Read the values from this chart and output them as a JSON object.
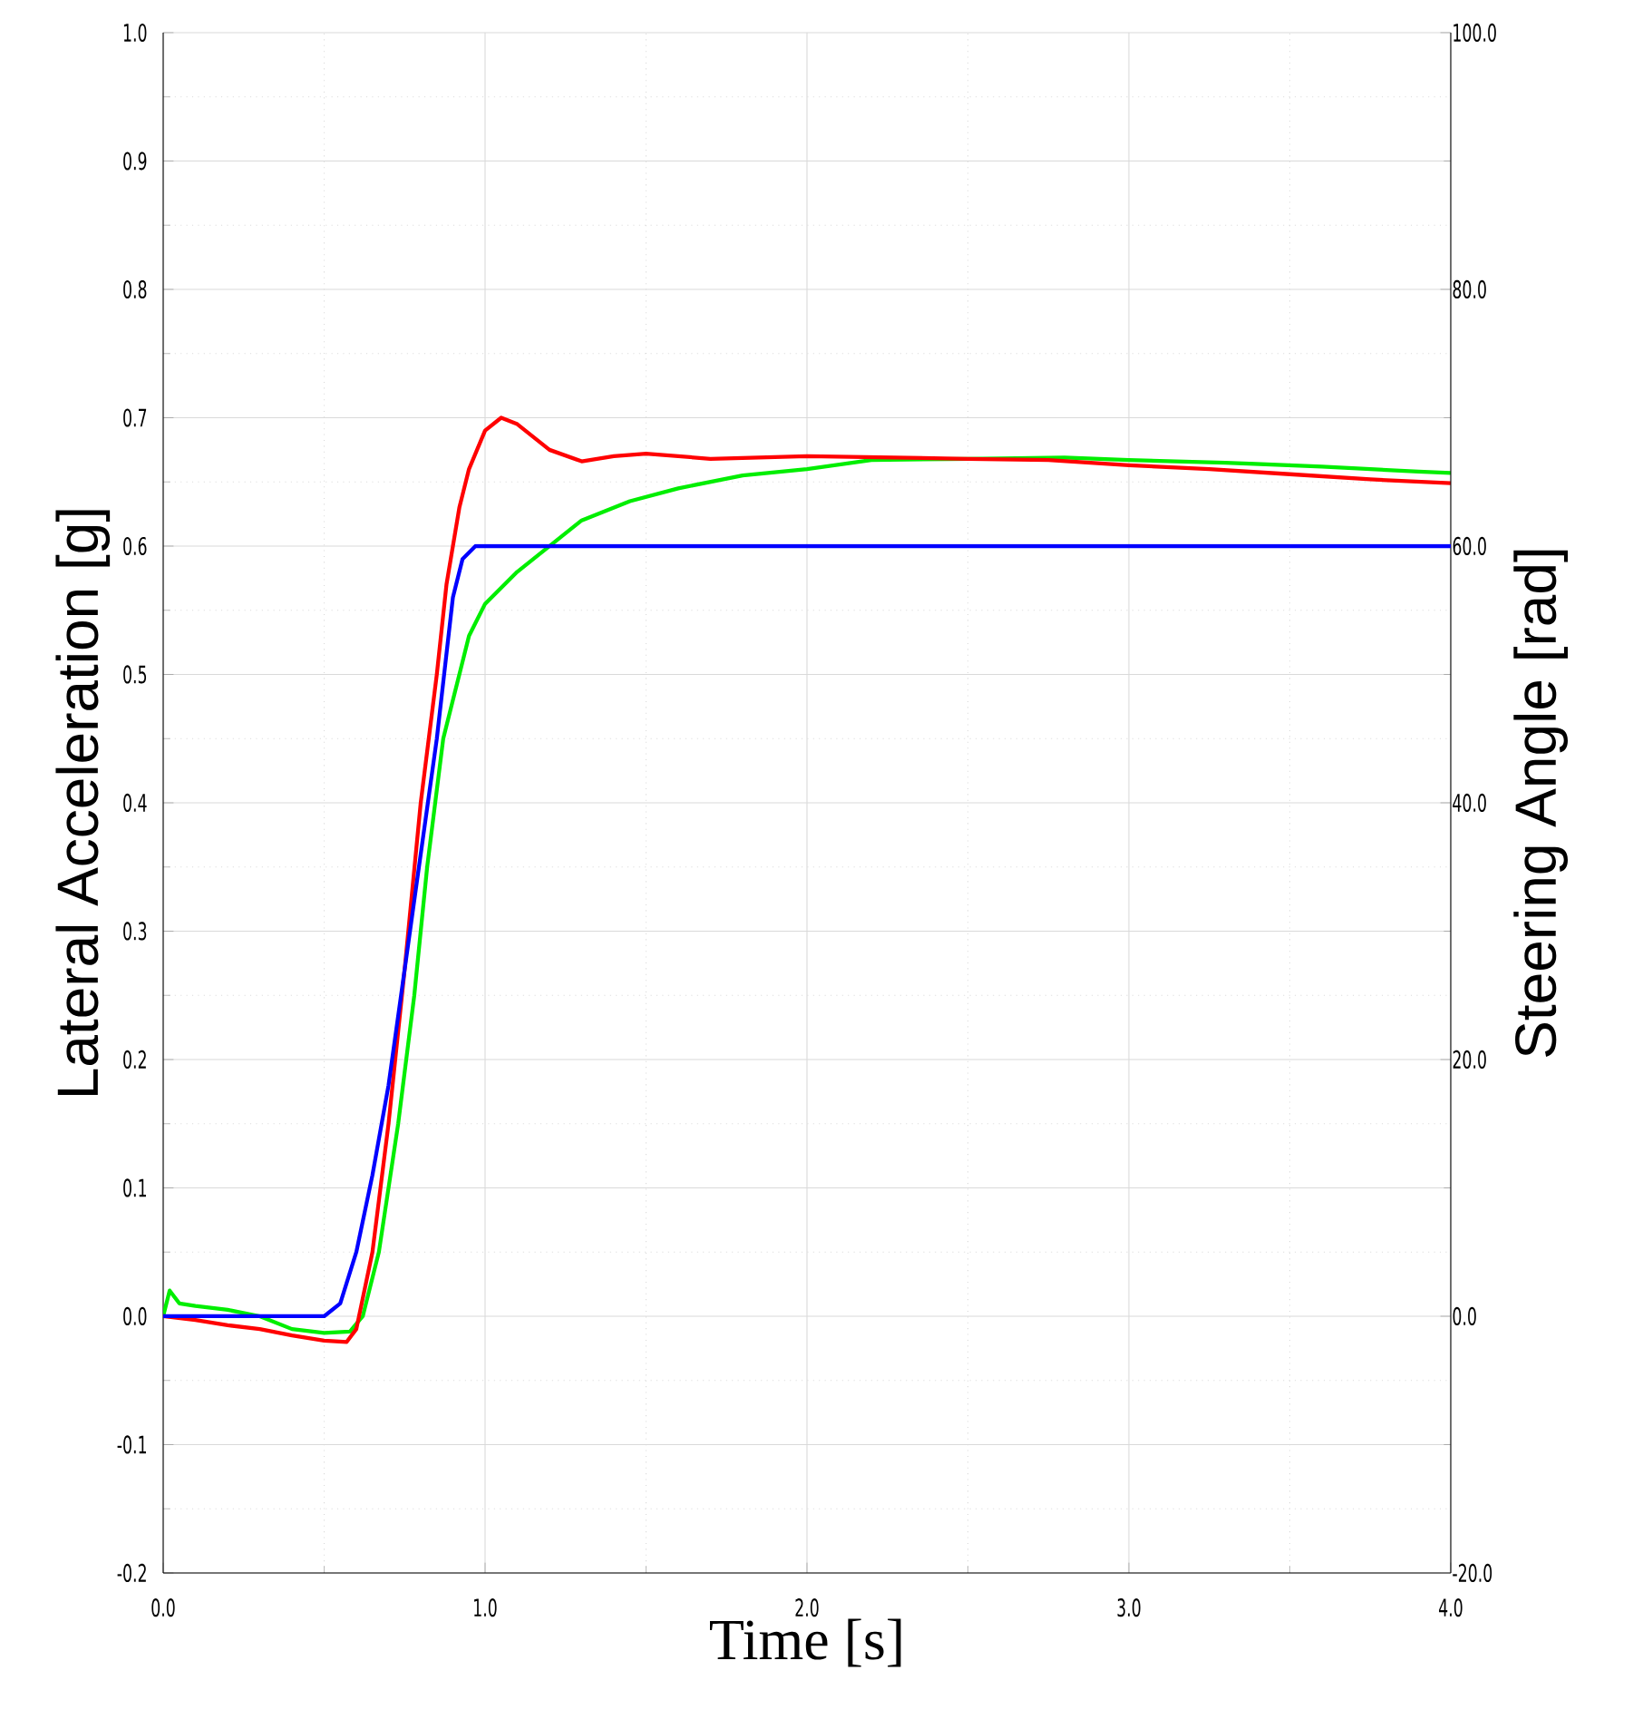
{
  "chart_data": {
    "type": "line",
    "xlabel": "Time [s]",
    "ylabel": "Lateral Acceleration  [g]",
    "y2label": "Steering Angle  [rad]",
    "xlim": [
      0,
      4
    ],
    "ylim": [
      -0.2,
      1.0
    ],
    "y2lim": [
      -20,
      100
    ],
    "xticks": [
      {
        "value": 0,
        "label": "0.0"
      },
      {
        "value": 1,
        "label": "1.0"
      },
      {
        "value": 2,
        "label": "2.0"
      },
      {
        "value": 3,
        "label": "3.0"
      },
      {
        "value": 4,
        "label": "4.0"
      }
    ],
    "yticks": [
      {
        "value": -0.2,
        "label": "-0.2"
      },
      {
        "value": -0.1,
        "label": "-0.1"
      },
      {
        "value": 0,
        "label": "0.0"
      },
      {
        "value": 0.1,
        "label": "0.1"
      },
      {
        "value": 0.2,
        "label": "0.2"
      },
      {
        "value": 0.3,
        "label": "0.3"
      },
      {
        "value": 0.4,
        "label": "0.4"
      },
      {
        "value": 0.5,
        "label": "0.5"
      },
      {
        "value": 0.6,
        "label": "0.6"
      },
      {
        "value": 0.7,
        "label": "0.7"
      },
      {
        "value": 0.8,
        "label": "0.8"
      },
      {
        "value": 0.9,
        "label": "0.9"
      },
      {
        "value": 1.0,
        "label": "1.0"
      }
    ],
    "y2ticks": [
      {
        "value": -20,
        "label": "-20.0"
      },
      {
        "value": 0,
        "label": "0.0"
      },
      {
        "value": 20,
        "label": "20.0"
      },
      {
        "value": 40,
        "label": "40.0"
      },
      {
        "value": 60,
        "label": "60.0"
      },
      {
        "value": 80,
        "label": "80.0"
      },
      {
        "value": 100,
        "label": "100.0"
      }
    ],
    "grid": true,
    "marker": "none",
    "line_style": "solid",
    "series": [
      {
        "color": "#0000ff",
        "axis": "y2",
        "x": [
          0,
          0.5,
          0.55,
          0.6,
          0.65,
          0.7,
          0.75,
          0.8,
          0.85,
          0.9,
          0.93,
          0.97,
          4.0
        ],
        "values": [
          0,
          0,
          1,
          5,
          11,
          18,
          27,
          36,
          45,
          56,
          59,
          60,
          60
        ]
      },
      {
        "color": "#00ee00",
        "x": [
          0,
          0.02,
          0.05,
          0.1,
          0.2,
          0.3,
          0.4,
          0.5,
          0.58,
          0.62,
          0.67,
          0.73,
          0.78,
          0.82,
          0.87,
          0.9,
          0.95,
          1.0,
          1.1,
          1.2,
          1.3,
          1.45,
          1.6,
          1.8,
          2.0,
          2.2,
          2.5,
          2.8,
          3.0,
          3.3,
          3.6,
          3.9,
          4.0
        ],
        "values": [
          0,
          0.02,
          0.01,
          0.008,
          0.005,
          0,
          -0.01,
          -0.013,
          -0.012,
          0.0,
          0.05,
          0.15,
          0.25,
          0.35,
          0.45,
          0.48,
          0.53,
          0.555,
          0.58,
          0.6,
          0.62,
          0.635,
          0.645,
          0.655,
          0.66,
          0.667,
          0.668,
          0.669,
          0.667,
          0.665,
          0.662,
          0.658,
          0.657
        ]
      },
      {
        "color": "#ff0000",
        "x": [
          0,
          0.1,
          0.2,
          0.3,
          0.4,
          0.5,
          0.57,
          0.6,
          0.65,
          0.7,
          0.75,
          0.8,
          0.85,
          0.88,
          0.92,
          0.95,
          1.0,
          1.05,
          1.1,
          1.2,
          1.3,
          1.4,
          1.5,
          1.7,
          2.0,
          2.5,
          2.75,
          3.0,
          3.25,
          3.5,
          3.75,
          4.0
        ],
        "values": [
          0,
          -0.003,
          -0.007,
          -0.01,
          -0.015,
          -0.019,
          -0.02,
          -0.01,
          0.05,
          0.15,
          0.27,
          0.4,
          0.5,
          0.57,
          0.63,
          0.66,
          0.69,
          0.7,
          0.695,
          0.675,
          0.666,
          0.67,
          0.672,
          0.668,
          0.67,
          0.668,
          0.667,
          0.663,
          0.66,
          0.656,
          0.652,
          0.649
        ]
      }
    ]
  }
}
